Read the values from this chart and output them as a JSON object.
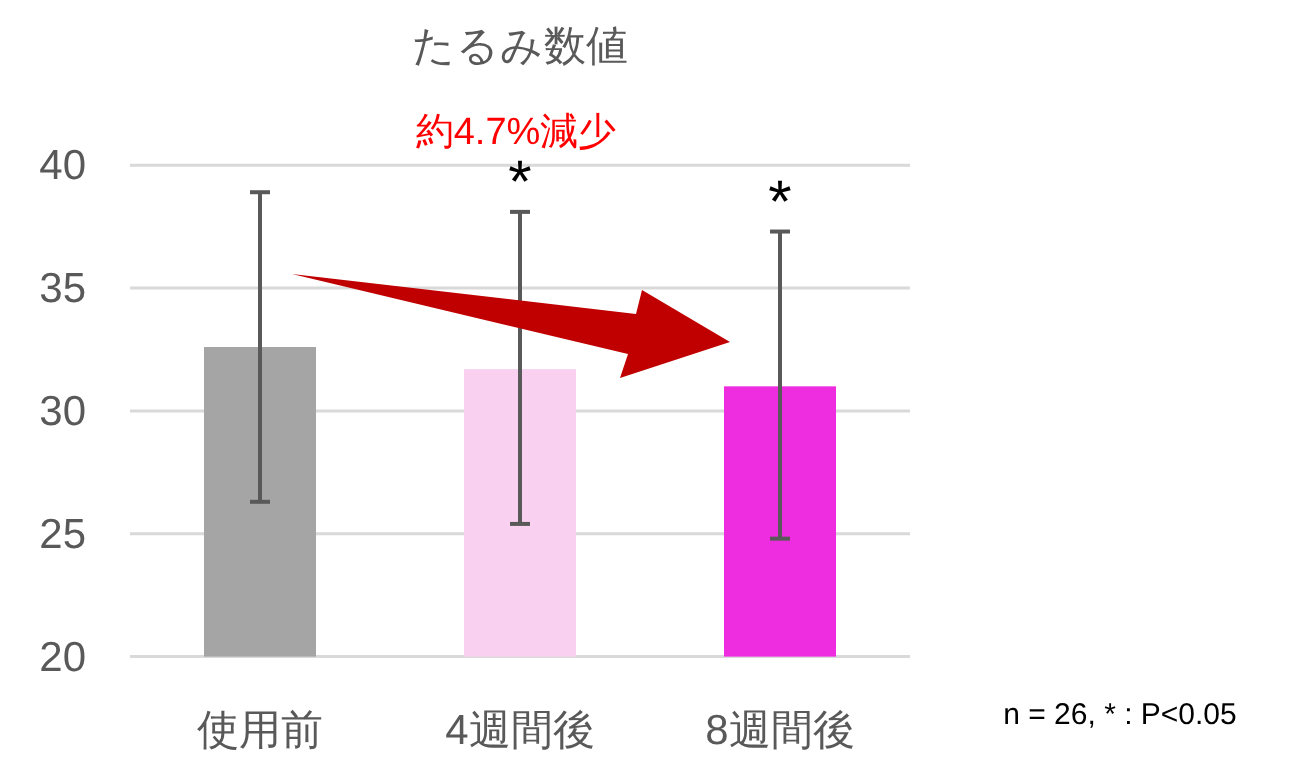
{
  "chart_data": {
    "type": "bar",
    "title": "たるみ数値",
    "subtitle": "約4.7%減少",
    "categories": [
      "使用前",
      "4週間後",
      "8週間後"
    ],
    "values": [
      32.6,
      31.7,
      31.0
    ],
    "colors": [
      "#a5a5a5",
      "#f9d0ef",
      "#ee2de0"
    ],
    "errors": [
      [
        26.3,
        38.9
      ],
      [
        25.4,
        38.1
      ],
      [
        24.8,
        37.3
      ]
    ],
    "ylim": [
      20,
      40
    ],
    "yticks": [
      20,
      25,
      30,
      35,
      40
    ],
    "grid": "y",
    "annotations": [
      {
        "text": "*",
        "x": "4週間後",
        "y": 38.1
      },
      {
        "text": "*",
        "x": "8週間後",
        "y": 37.3
      },
      "n = 26, * : P<0.05"
    ]
  }
}
